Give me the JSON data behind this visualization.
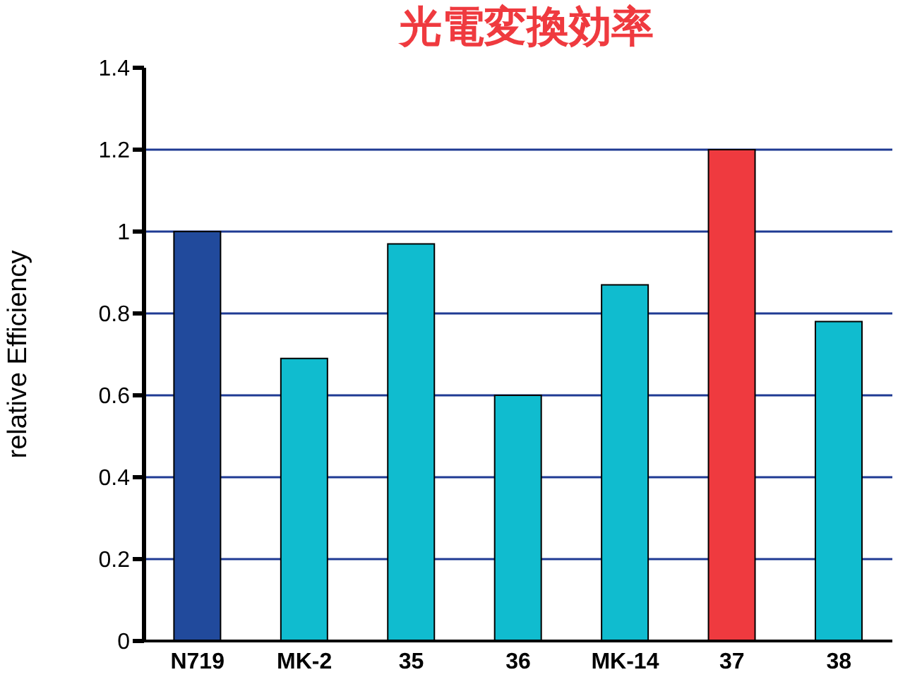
{
  "chart_data": {
    "type": "bar",
    "title": "光電変換効率",
    "ylabel": "relative Efficiency",
    "categories": [
      "N719",
      "MK-2",
      "35",
      "36",
      "MK-14",
      "37",
      "38"
    ],
    "values": [
      1.0,
      0.69,
      0.97,
      0.6,
      0.87,
      1.2,
      0.78
    ],
    "colors": [
      "#214a9c",
      "#10bccf",
      "#10bccf",
      "#10bccf",
      "#10bccf",
      "#ef3a3f",
      "#10bccf"
    ],
    "ylim": [
      0,
      1.4
    ],
    "yticks": [
      0,
      0.2,
      0.4,
      0.6,
      0.8,
      1,
      1.2,
      1.4
    ],
    "grid": "y"
  }
}
